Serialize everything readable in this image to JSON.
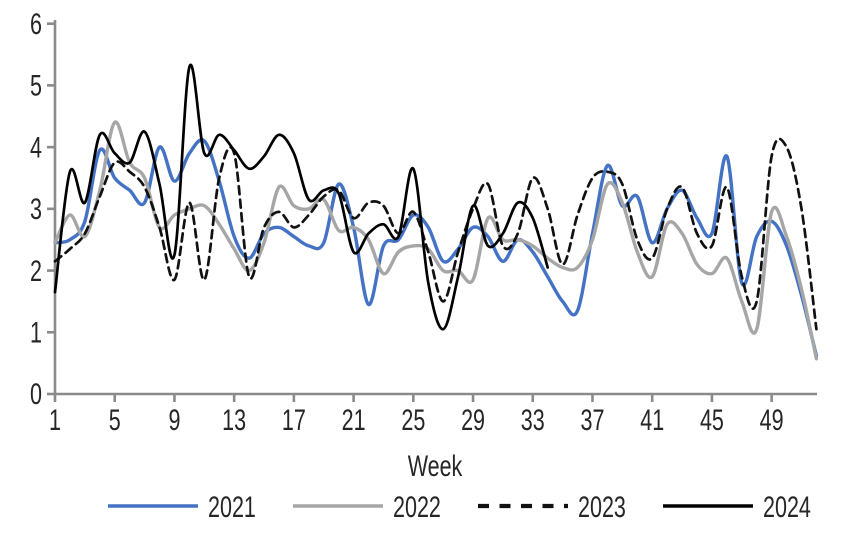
{
  "chart_data": {
    "type": "line",
    "title": "",
    "xlabel": "Week",
    "ylabel": "",
    "xlim": [
      1,
      52
    ],
    "ylim": [
      0,
      6
    ],
    "x_ticks": [
      1,
      5,
      9,
      13,
      17,
      21,
      25,
      29,
      33,
      37,
      41,
      45,
      49
    ],
    "y_ticks": [
      0,
      1,
      2,
      3,
      4,
      5,
      6
    ],
    "grid": false,
    "legend_position": "bottom",
    "x": [
      1,
      2,
      3,
      4,
      5,
      6,
      7,
      8,
      9,
      10,
      11,
      12,
      13,
      14,
      15,
      16,
      17,
      18,
      19,
      20,
      21,
      22,
      23,
      24,
      25,
      26,
      27,
      28,
      29,
      30,
      31,
      32,
      33,
      34,
      35,
      36,
      37,
      38,
      39,
      40,
      41,
      42,
      43,
      44,
      45,
      46,
      47,
      48,
      49,
      50,
      51,
      52
    ],
    "series": [
      {
        "name": "2021",
        "color": "#4472C4",
        "style": "solid",
        "values": [
          2.45,
          2.5,
          2.8,
          3.95,
          3.5,
          3.3,
          3.1,
          4.0,
          3.45,
          3.9,
          4.1,
          3.45,
          2.55,
          2.2,
          2.6,
          2.7,
          2.55,
          2.4,
          2.45,
          3.4,
          2.7,
          1.45,
          2.4,
          2.5,
          2.9,
          2.7,
          2.15,
          2.35,
          2.7,
          2.55,
          2.15,
          2.5,
          2.3,
          1.9,
          1.5,
          1.35,
          2.6,
          3.7,
          3.05,
          3.2,
          2.45,
          3.0,
          3.3,
          2.85,
          2.6,
          3.85,
          1.8,
          2.55,
          2.8,
          2.4,
          1.6,
          0.62
        ]
      },
      {
        "name": "2022",
        "color": "#A6A6A6",
        "style": "solid",
        "values": [
          2.45,
          2.9,
          2.55,
          3.3,
          4.4,
          3.75,
          3.5,
          2.7,
          2.9,
          3.0,
          3.05,
          2.75,
          2.35,
          2.0,
          2.45,
          3.35,
          3.05,
          3.0,
          3.15,
          2.65,
          2.7,
          2.5,
          1.95,
          2.3,
          2.4,
          2.35,
          2.0,
          2.0,
          1.85,
          2.85,
          2.5,
          2.5,
          2.4,
          2.2,
          2.05,
          2.05,
          2.5,
          3.4,
          3.1,
          2.3,
          1.9,
          2.75,
          2.6,
          2.1,
          1.95,
          2.2,
          1.5,
          1.05,
          2.95,
          2.55,
          1.7,
          0.57
        ]
      },
      {
        "name": "2023",
        "color": "#111111",
        "style": "dashed",
        "values": [
          2.15,
          2.35,
          2.6,
          3.2,
          3.75,
          3.6,
          3.35,
          2.7,
          1.85,
          3.1,
          1.85,
          3.5,
          3.9,
          1.9,
          2.7,
          2.95,
          2.7,
          2.9,
          3.2,
          3.3,
          2.85,
          3.1,
          3.05,
          2.6,
          2.95,
          2.3,
          1.5,
          2.3,
          3.0,
          3.4,
          2.4,
          2.6,
          3.5,
          3.0,
          2.1,
          2.9,
          3.5,
          3.6,
          3.4,
          2.5,
          2.2,
          3.0,
          3.35,
          2.6,
          2.4,
          3.35,
          1.9,
          1.5,
          3.85,
          4.0,
          3.0,
          1.05
        ]
      },
      {
        "name": "2024",
        "color": "#000000",
        "style": "solid",
        "values": [
          1.65,
          3.6,
          3.1,
          4.2,
          3.9,
          3.75,
          4.25,
          3.4,
          2.25,
          5.3,
          3.9,
          4.2,
          3.95,
          3.65,
          3.85,
          4.2,
          3.9,
          3.15,
          3.3,
          3.25,
          2.3,
          2.6,
          2.75,
          2.55,
          3.65,
          1.8,
          1.05,
          1.9,
          3.05,
          2.4,
          2.6,
          3.1,
          2.85,
          2.05
        ]
      }
    ],
    "axis_color": "#8A8A8A",
    "text_color": "#262626"
  }
}
